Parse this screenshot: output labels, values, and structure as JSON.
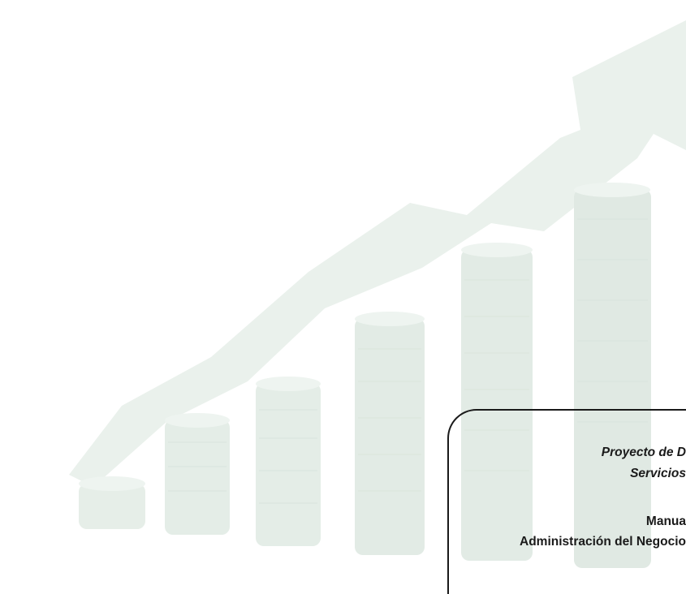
{
  "cover": {
    "line1": "Proyecto de D",
    "line2": "Servicios",
    "line3": "Manua",
    "line4": "Administración del Negocio"
  },
  "colors": {
    "illustration_fill": "#e7efe9",
    "coin_shade": "#dfe9e2",
    "frame_line": "#1a1a1a"
  }
}
